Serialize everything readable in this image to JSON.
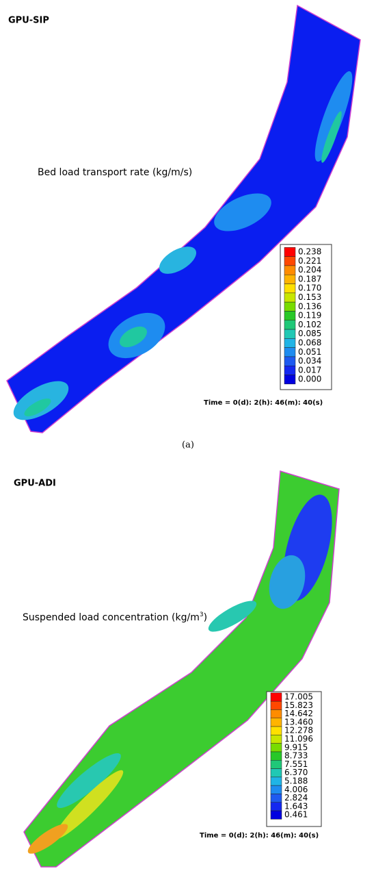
{
  "panels": [
    {
      "title": "GPU-SIP",
      "label": "Bed load transport rate (kg/m/s)",
      "legend": [
        "0.238",
        "0.221",
        "0.204",
        "0.187",
        "0.170",
        "0.153",
        "0.136",
        "0.119",
        "0.102",
        "0.085",
        "0.068",
        "0.051",
        "0.034",
        "0.017",
        "0.000"
      ],
      "time": "Time = 0(d): 2(h): 46(m): 40(s)",
      "caption": "(a)"
    },
    {
      "title": "GPU-ADI",
      "label_parts": [
        "Suspended load concentration (kg/m",
        "3",
        ")"
      ],
      "legend": [
        "17.005",
        "15.823",
        "14.642",
        "13.460",
        "12.278",
        "11.096",
        "9.915",
        "8.733",
        "7.551",
        "6.370",
        "5.188",
        "4.006",
        "2.824",
        "1.643",
        "0.461"
      ],
      "time": "Time = 0(d): 2(h): 46(m): 40(s)"
    }
  ]
}
